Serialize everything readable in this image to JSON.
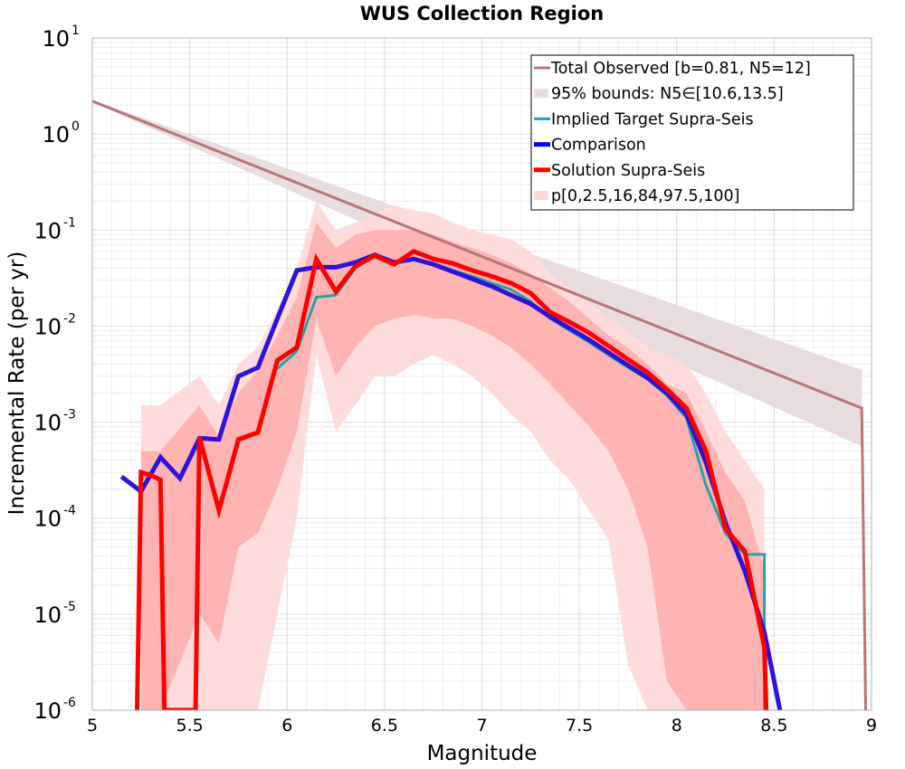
{
  "chart_data": {
    "type": "line",
    "title": "WUS Collection Region",
    "xlabel": "Magnitude",
    "ylabel": "Incremental Rate (per yr)",
    "xlim": [
      5,
      9
    ],
    "ylim": [
      1e-06,
      10
    ],
    "yscale": "log",
    "grid": true,
    "legend_position": "top-right",
    "x_ticks": [
      "5",
      "5.5",
      "6",
      "6.5",
      "7",
      "7.5",
      "8",
      "8.5",
      "9"
    ],
    "y_ticks": [
      {
        "base": "10",
        "exp": "-6",
        "value": 1e-06
      },
      {
        "base": "10",
        "exp": "-5",
        "value": 1e-05
      },
      {
        "base": "10",
        "exp": "-4",
        "value": 0.0001
      },
      {
        "base": "10",
        "exp": "-3",
        "value": 0.001
      },
      {
        "base": "10",
        "exp": "-2",
        "value": 0.01
      },
      {
        "base": "10",
        "exp": "-1",
        "value": 0.1
      },
      {
        "base": "10",
        "exp": "0",
        "value": 1
      },
      {
        "base": "10",
        "exp": "1",
        "value": 10
      }
    ],
    "legend": [
      {
        "label": "Total Observed [b=0.81, N5=12]",
        "color": "#b87575",
        "style": "line"
      },
      {
        "label": "95% bounds: N5∈[10.6,13.5]",
        "color": "#e9dcdf",
        "style": "fill"
      },
      {
        "label": "Implied Target Supra-Seis",
        "color": "#23a3a3",
        "style": "line"
      },
      {
        "label": "Comparison",
        "color": "#0000ff",
        "style": "thickline"
      },
      {
        "label": "Solution Supra-Seis",
        "color": "#ff0000",
        "style": "thickline"
      },
      {
        "label": "p[0,2.5,16,84,97.5,100]",
        "color": "#ffd8d8",
        "style": "fill"
      }
    ],
    "total_observed": {
      "x": [
        5.0,
        8.95,
        8.95,
        8.97
      ],
      "y": [
        2.2,
        0.0014,
        0.0014,
        1e-06
      ],
      "color": "#b87575"
    },
    "bounds_95": {
      "x": [
        5.0,
        8.95
      ],
      "upper": [
        2.25,
        0.0035
      ],
      "lower": [
        2.15,
        0.00056
      ],
      "color": "#e9dcdf"
    },
    "band_outer": {
      "x": [
        5.25,
        5.35,
        5.55,
        5.65,
        5.75,
        5.85,
        5.95,
        6.05,
        6.15,
        6.25,
        6.35,
        6.45,
        6.55,
        6.65,
        6.75,
        6.85,
        6.95,
        7.05,
        7.15,
        7.25,
        7.35,
        7.45,
        7.55,
        7.65,
        7.75,
        7.85,
        7.95,
        8.05,
        8.15,
        8.25,
        8.35,
        8.45
      ],
      "upper": [
        0.0015,
        0.0015,
        0.003,
        0.0015,
        0.004,
        0.006,
        0.015,
        0.04,
        0.2,
        0.1,
        0.12,
        0.15,
        0.18,
        0.16,
        0.15,
        0.12,
        0.1,
        0.09,
        0.08,
        0.06,
        0.035,
        0.025,
        0.018,
        0.012,
        0.009,
        0.006,
        0.005,
        0.004,
        0.002,
        0.0008,
        0.0004,
        0.0002
      ],
      "lower": [
        1e-06,
        1e-06,
        1e-06,
        1e-06,
        1e-06,
        1e-06,
        1e-05,
        0.0001,
        0.005,
        0.0008,
        0.0015,
        0.003,
        0.003,
        0.004,
        0.005,
        0.004,
        0.003,
        0.002,
        0.0012,
        0.0008,
        0.0004,
        0.00025,
        0.00012,
        6e-05,
        3e-06,
        1e-06,
        1e-06,
        1e-06,
        1e-06,
        1e-06,
        1e-06,
        1e-06
      ],
      "color": "#ffdcdc"
    },
    "band_inner": {
      "x": [
        5.25,
        5.35,
        5.55,
        5.65,
        5.75,
        5.85,
        5.95,
        6.05,
        6.15,
        6.25,
        6.35,
        6.45,
        6.55,
        6.65,
        6.75,
        6.85,
        6.95,
        7.05,
        7.15,
        7.25,
        7.35,
        7.45,
        7.55,
        7.65,
        7.75,
        7.85,
        7.95,
        8.05,
        8.15,
        8.25,
        8.35,
        8.45
      ],
      "upper": [
        0.0005,
        0.0005,
        0.0015,
        0.0007,
        0.002,
        0.0035,
        0.008,
        0.02,
        0.12,
        0.065,
        0.09,
        0.1,
        0.1,
        0.1,
        0.09,
        0.075,
        0.065,
        0.055,
        0.045,
        0.035,
        0.025,
        0.018,
        0.012,
        0.008,
        0.006,
        0.004,
        0.0025,
        0.002,
        0.0008,
        0.0003,
        0.00015,
        3e-05
      ],
      "lower": [
        1e-06,
        1e-06,
        1e-05,
        5e-06,
        5e-05,
        7e-05,
        0.0002,
        0.0008,
        0.012,
        0.003,
        0.006,
        0.01,
        0.012,
        0.013,
        0.012,
        0.012,
        0.01,
        0.008,
        0.006,
        0.004,
        0.0025,
        0.0015,
        0.0009,
        0.0005,
        0.0002,
        5e-05,
        2e-06,
        1e-06,
        1e-06,
        1e-06,
        1e-06,
        1e-06
      ],
      "color": "#ffb3b3"
    },
    "series": [
      {
        "name": "Implied Target Supra-Seis",
        "color": "#23a3a3",
        "width": 3,
        "x": [
          5.95,
          6.05,
          6.15,
          6.25,
          6.35,
          6.45,
          6.55,
          6.65,
          6.75,
          6.85,
          6.95,
          7.05,
          7.15,
          7.25,
          7.35,
          7.45,
          7.55,
          7.65,
          7.75,
          7.85,
          7.95,
          8.05,
          8.15,
          8.25,
          8.35,
          8.45,
          8.45
        ],
        "y": [
          0.0036,
          0.0055,
          0.02,
          0.021,
          0.04,
          0.054,
          0.045,
          0.05,
          0.045,
          0.038,
          0.033,
          0.028,
          0.024,
          0.018,
          0.012,
          0.009,
          0.0068,
          0.005,
          0.0037,
          0.0028,
          0.0019,
          0.0011,
          0.00022,
          7e-05,
          4.2e-05,
          4.2e-05,
          1e-06
        ]
      },
      {
        "name": "Comparison",
        "color": "#2e12d8",
        "width": 5,
        "x": [
          5.15,
          5.25,
          5.35,
          5.45,
          5.55,
          5.65,
          5.75,
          5.85,
          5.95,
          6.05,
          6.15,
          6.25,
          6.35,
          6.45,
          6.55,
          6.65,
          6.75,
          6.85,
          6.95,
          7.05,
          7.15,
          7.25,
          7.35,
          7.45,
          7.55,
          7.65,
          7.75,
          7.85,
          7.95,
          8.05,
          8.15,
          8.25,
          8.35,
          8.45,
          8.53
        ],
        "y": [
          0.00027,
          0.00019,
          0.00043,
          0.00026,
          0.00068,
          0.00066,
          0.003,
          0.0037,
          0.012,
          0.038,
          0.041,
          0.041,
          0.046,
          0.055,
          0.046,
          0.05,
          0.044,
          0.037,
          0.031,
          0.026,
          0.021,
          0.017,
          0.0125,
          0.0095,
          0.0072,
          0.0053,
          0.0039,
          0.0029,
          0.002,
          0.0012,
          0.00038,
          9e-05,
          2.8e-05,
          6.5e-06,
          1e-06
        ]
      },
      {
        "name": "Solution Supra-Seis",
        "color": "#ff0000",
        "width": 5,
        "x": [
          5.23,
          5.25,
          5.3,
          5.35,
          5.37,
          5.53,
          5.55,
          5.65,
          5.75,
          5.85,
          5.95,
          6.05,
          6.15,
          6.25,
          6.35,
          6.45,
          6.55,
          6.65,
          6.75,
          6.85,
          6.95,
          7.05,
          7.15,
          7.25,
          7.35,
          7.45,
          7.55,
          7.65,
          7.75,
          7.85,
          7.95,
          8.05,
          8.15,
          8.25,
          8.35,
          8.45,
          8.46
        ],
        "y": [
          1e-06,
          0.0003,
          0.00028,
          0.00025,
          1e-06,
          1e-06,
          0.0007,
          0.00012,
          0.00066,
          0.00078,
          0.0044,
          0.006,
          0.05,
          0.023,
          0.042,
          0.054,
          0.044,
          0.06,
          0.05,
          0.045,
          0.038,
          0.033,
          0.028,
          0.022,
          0.014,
          0.011,
          0.0085,
          0.0062,
          0.0045,
          0.0033,
          0.0022,
          0.0014,
          0.0005,
          7.8e-05,
          4.5e-05,
          4.5e-06,
          1e-06
        ]
      }
    ]
  }
}
